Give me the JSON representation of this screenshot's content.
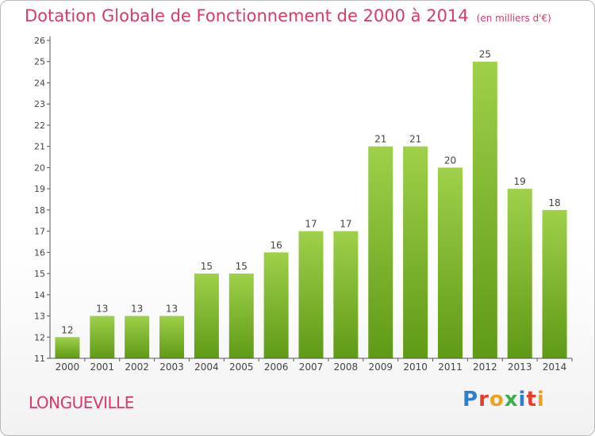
{
  "header": {
    "title": "Dotation Globale de Fonctionnement de 2000 à 2014",
    "subtitle": "(en milliers d'€)"
  },
  "footer": {
    "city": "LONGUEVILLE",
    "logo_text": "Proxiti",
    "logo_colors": [
      "#2f7fcf",
      "#e63d2f",
      "#f0a020",
      "#36b24a",
      "#2f7fcf",
      "#e63d2f",
      "#f0a020"
    ]
  },
  "colors": {
    "accent": "#d93a66",
    "bar_top": "#9fd04a",
    "bar_bottom": "#5f9a16",
    "axis": "#555555",
    "text": "#444444"
  },
  "chart_data": {
    "type": "bar",
    "categories": [
      "2000",
      "2001",
      "2002",
      "2003",
      "2004",
      "2005",
      "2006",
      "2007",
      "2008",
      "2009",
      "2010",
      "2011",
      "2012",
      "2013",
      "2014"
    ],
    "values": [
      12,
      13,
      13,
      13,
      15,
      15,
      16,
      17,
      17,
      21,
      21,
      20,
      25,
      19,
      18
    ],
    "ylim": [
      11,
      26
    ],
    "yticks": [
      11,
      12,
      13,
      14,
      15,
      16,
      17,
      18,
      19,
      20,
      21,
      22,
      23,
      24,
      25,
      26
    ],
    "grid": false,
    "data_labels": true
  }
}
